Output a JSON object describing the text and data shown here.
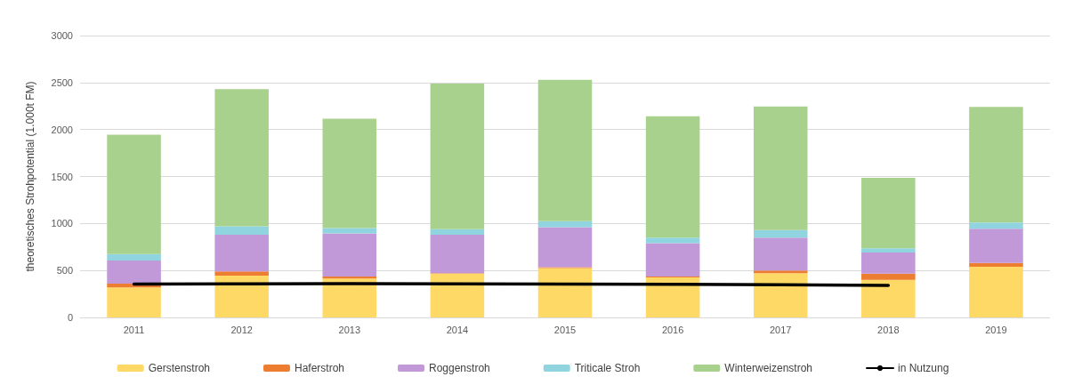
{
  "chart_data": {
    "type": "bar",
    "stacked": true,
    "ylabel": "theoretisches Strohpotential (1.000t FM)",
    "categories": [
      "2011",
      "2012",
      "2013",
      "2014",
      "2015",
      "2016",
      "2017",
      "2018",
      "2019"
    ],
    "series": [
      {
        "name": "Gerstenstroh",
        "color": "#ffd966",
        "values": [
          320,
          445,
          415,
          465,
          525,
          425,
          470,
          400,
          540
        ]
      },
      {
        "name": "Haferstroh",
        "color": "#ed7d31",
        "values": [
          40,
          45,
          20,
          5,
          10,
          10,
          30,
          65,
          40
        ]
      },
      {
        "name": "Roggenstroh",
        "color": "#c198d8",
        "values": [
          245,
          390,
          460,
          410,
          425,
          355,
          350,
          225,
          365
        ]
      },
      {
        "name": "Triticale Stroh",
        "color": "#8fd4df",
        "values": [
          70,
          90,
          55,
          60,
          65,
          60,
          80,
          45,
          65
        ]
      },
      {
        "name": "Winterweizenstroh",
        "color": "#a9d18e",
        "values": [
          1270,
          1460,
          1165,
          1550,
          1505,
          1290,
          1315,
          750,
          1230
        ]
      },
      {
        "name": "in Nutzung",
        "type": "line",
        "color": "#000000",
        "values": [
          355,
          358,
          360,
          358,
          355,
          352,
          348,
          340,
          null
        ]
      }
    ],
    "ylim": [
      0,
      3000
    ],
    "yticks": [
      0,
      500,
      1000,
      1500,
      2000,
      2500,
      3000
    ],
    "grid": "y",
    "legend": "bottom",
    "marker": "none",
    "line_style": "solid"
  }
}
